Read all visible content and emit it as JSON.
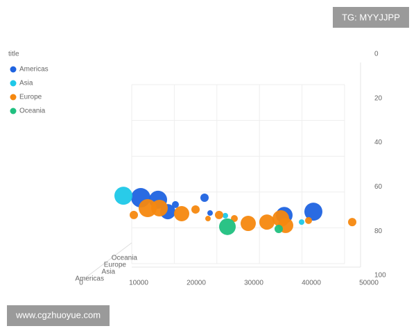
{
  "chart_data": {
    "type": "bubble3d",
    "legend_title": "title",
    "legend_position": "top-left",
    "grid": true,
    "xlim": [
      0,
      50000
    ],
    "xticks": [
      0,
      10000,
      20000,
      30000,
      40000,
      50000
    ],
    "ylim": [
      0,
      100
    ],
    "yticks": [
      0,
      20,
      40,
      60,
      80,
      100
    ],
    "y_inverted": true,
    "depth_categories": [
      "Oceania",
      "Europe",
      "Asia",
      "Americas"
    ],
    "series": [
      {
        "name": "Americas",
        "color": "#1f63e0",
        "x": [
          10361,
          13373,
          15060,
          16386,
          21446,
          22410,
          35301,
          40361
        ],
        "values": [
          64.9,
          65.8,
          71.2,
          68,
          64.9,
          71.8,
          72.8,
          71.2
        ],
        "sizes": [
          28,
          26,
          22,
          10,
          12,
          8,
          24,
          26
        ]
      },
      {
        "name": "Asia",
        "color": "#1ec8e8",
        "x": [
          7349,
          25060,
          38313
        ],
        "values": [
          64,
          73,
          75.9
        ],
        "sizes": [
          26,
          8,
          8
        ]
      },
      {
        "name": "Europe",
        "color": "#f5880f",
        "x": [
          9157,
          11566,
          13614,
          17470,
          19880,
          22048,
          23976,
          26627,
          29036,
          32289,
          34699,
          35542,
          39518,
          47108
        ],
        "values": [
          72.7,
          69.6,
          69.6,
          72.1,
          70.2,
          74.3,
          72.7,
          74.3,
          76.5,
          75.9,
          74.3,
          77.4,
          75.2,
          75.9
        ],
        "sizes": [
          12,
          26,
          24,
          22,
          12,
          8,
          12,
          10,
          22,
          22,
          24,
          22,
          10,
          12
        ]
      },
      {
        "name": "Oceania",
        "color": "#20c080",
        "x": [
          25422,
          34337
        ],
        "values": [
          78,
          79
        ],
        "sizes": [
          24,
          12
        ]
      }
    ],
    "watermarks": [
      "TG: MYYJJPP",
      "www.cgzhuoyue.com"
    ]
  }
}
